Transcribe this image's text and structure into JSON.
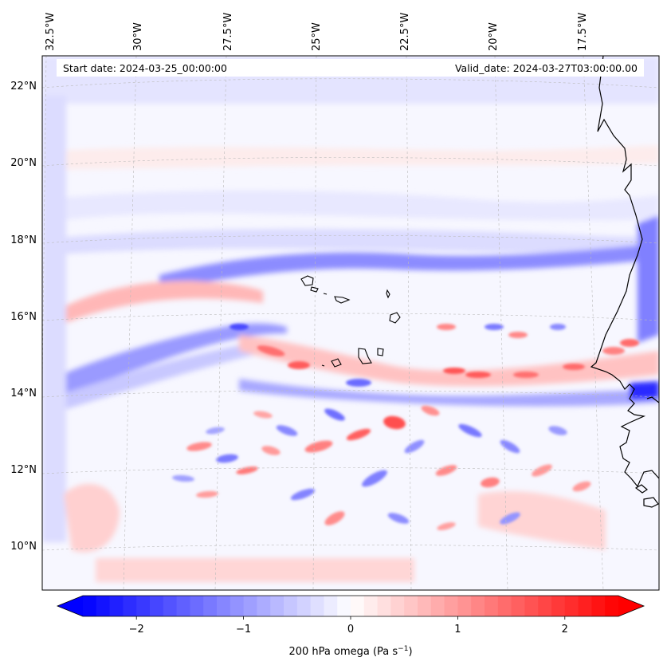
{
  "map": {
    "start_date": "Start date: 2024-03-25_00:00:00",
    "valid_date": "Valid_date: 2024-03-27T03:00:00.00",
    "field": "200 hPa omega",
    "lon_labels": [
      "32.5°W",
      "30°W",
      "27.5°W",
      "25°W",
      "22.5°W",
      "20°W",
      "17.5°W"
    ],
    "lat_labels": [
      "22°N",
      "20°N",
      "18°N",
      "16°N",
      "14°N",
      "12°N",
      "10°N"
    ]
  },
  "colorbar": {
    "label": "200 hPa omega (Pa s",
    "label_sup": "−1",
    "label_end": ")",
    "ticks": [
      "−2",
      "−1",
      "0",
      "1",
      "2"
    ],
    "tick_values": [
      -2,
      -1,
      0,
      1,
      2
    ],
    "range": [
      -2.5,
      2.5
    ],
    "colormap": "bwr",
    "color_neg": "#0000ff",
    "color_zero": "#ffffff",
    "color_pos": "#ff0000"
  }
}
